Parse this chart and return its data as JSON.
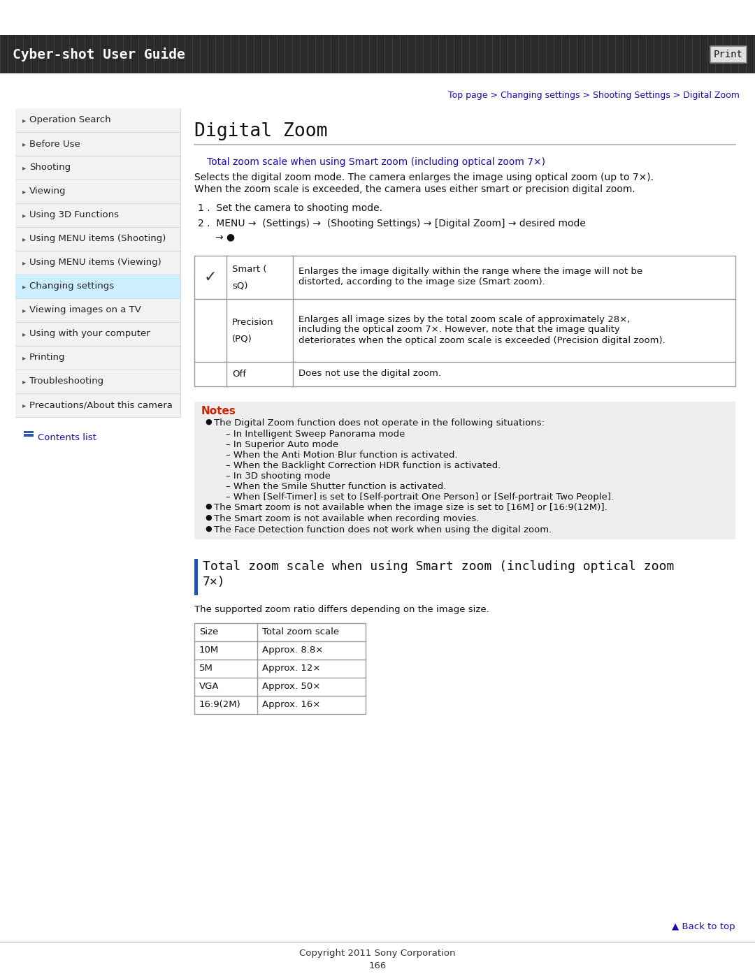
{
  "page_bg": "#ffffff",
  "header_bg": "#2d2d2d",
  "header_text": "Cyber-shot User Guide",
  "header_text_color": "#ffffff",
  "print_btn_text": "Print",
  "breadcrumb": "Top page > Changing settings > Shooting Settings > Digital Zoom",
  "breadcrumb_color": "#1a0dab",
  "sidebar_bg": "#f2f2f2",
  "sidebar_border_color": "#cccccc",
  "sidebar_active_bg": "#cceeff",
  "sidebar_items": [
    "Operation Search",
    "Before Use",
    "Shooting",
    "Viewing",
    "Using 3D Functions",
    "Using MENU items (Shooting)",
    "Using MENU items (Viewing)",
    "Changing settings",
    "Viewing images on a TV",
    "Using with your computer",
    "Printing",
    "Troubleshooting",
    "Precautions/About this camera"
  ],
  "sidebar_active_index": 7,
  "contents_list_text": "Contents list",
  "contents_list_color": "#1a0dab",
  "main_title": "Digital Zoom",
  "section_link": "Total zoom scale when using Smart zoom (including optical zoom 7×)",
  "section_link_color": "#1a0dab",
  "intro_text": "Selects the digital zoom mode. The camera enlarges the image using optical zoom (up to 7×).\nWhen the zoom scale is exceeded, the camera uses either smart or precision digital zoom.",
  "step1": "Set the camera to shooting mode.",
  "step2_a": "MENU →  (Settings) →  (Shooting Settings) → [Digital Zoom] → desired mode",
  "step2_b": "→ ●",
  "table_rows": [
    {
      "label_line1": "Smart (",
      "label_line2": "sQ)",
      "checked": true,
      "description": "Enlarges the image digitally within the range where the image will not be\ndistorted, according to the image size (Smart zoom)."
    },
    {
      "label_line1": "Precision",
      "label_line2": "(PQ)",
      "checked": false,
      "description": "Enlarges all image sizes by the total zoom scale of approximately 28×,\nincluding the optical zoom 7×. However, note that the image quality\ndeteriorates when the optical zoom scale is exceeded (Precision digital zoom)."
    },
    {
      "label_line1": "Off",
      "label_line2": "",
      "checked": false,
      "description": "Does not use the digital zoom."
    }
  ],
  "notes_bg": "#eeeeee",
  "notes_title": "Notes",
  "notes_title_color": "#cc2200",
  "notes_bullet1": "The Digital Zoom function does not operate in the following situations:",
  "notes_subbullets": [
    "In Intelligent Sweep Panorama mode",
    "In Superior Auto mode",
    "When the Anti Motion Blur function is activated.",
    "When the Backlight Correction HDR function is activated.",
    "In 3D shooting mode",
    "When the Smile Shutter function is activated.",
    "When [Self-Timer] is set to [Self-portrait One Person] or [Self-portrait Two People]."
  ],
  "notes_bullet2": "The Smart zoom is not available when the image size is set to [16M] or [16:9(12M)].",
  "notes_bullet3": "The Smart zoom is not available when recording movies.",
  "notes_bullet4": "The Face Detection function does not work when using the digital zoom.",
  "section2_title_line1": "Total zoom scale when using Smart zoom (including optical zoom",
  "section2_title_line2": "7×)",
  "section2_subtitle": "The supported zoom ratio differs depending on the image size.",
  "zoom_table_headers": [
    "Size",
    "Total zoom scale"
  ],
  "zoom_table_rows": [
    [
      "10M",
      "Approx. 8.8×"
    ],
    [
      "5M",
      "Approx. 12×"
    ],
    [
      "VGA",
      "Approx. 50×"
    ],
    [
      "16:9(2M)",
      "Approx. 16×"
    ]
  ],
  "back_to_top": "▲ Back to top",
  "back_to_top_color": "#1a0dab",
  "footer_line1": "Copyright 2011 Sony Corporation",
  "footer_line2": "166",
  "footer_color": "#333333",
  "table_border_color": "#999999",
  "sidebar_text_color": "#222222"
}
